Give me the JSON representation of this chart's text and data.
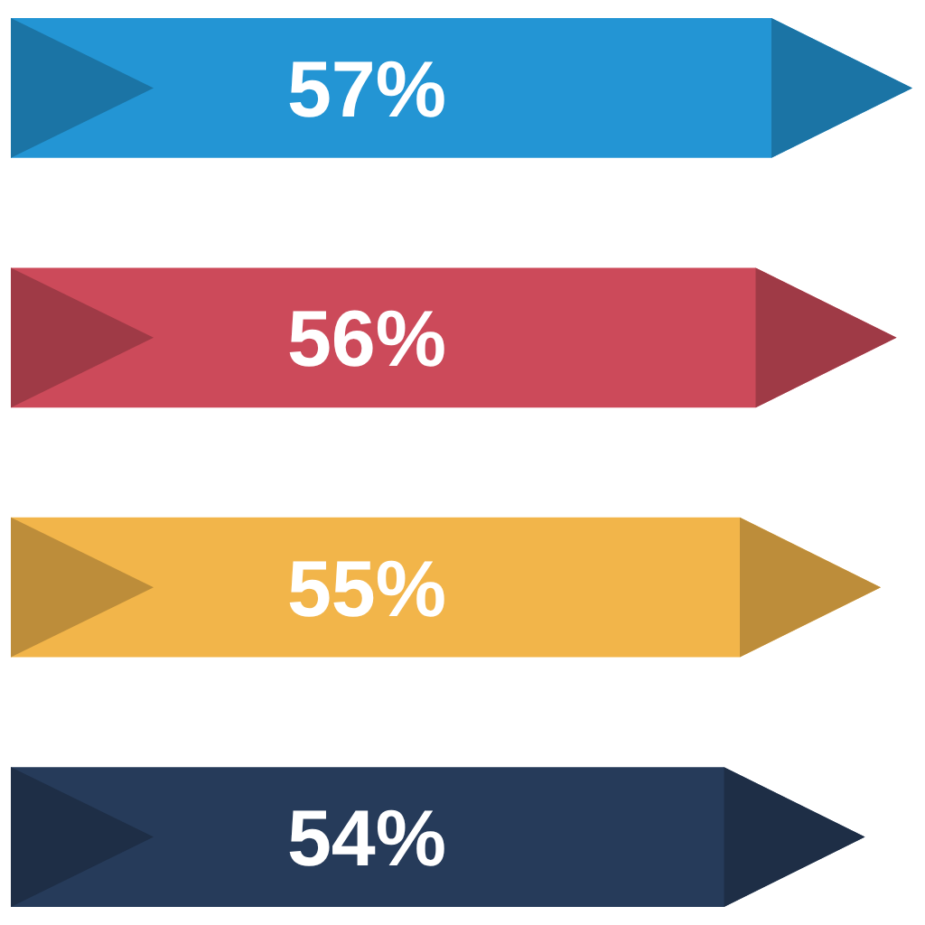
{
  "chart_data": {
    "type": "bar",
    "orientation": "horizontal",
    "categories": [
      null,
      null,
      null,
      null
    ],
    "values": [
      57,
      56,
      55,
      54
    ],
    "colors": [
      "#2395d4",
      "#cc4a5a",
      "#f2b54a",
      "#263b5a"
    ],
    "value_labels": [
      "57%",
      "56%",
      "55%",
      "54%"
    ]
  }
}
